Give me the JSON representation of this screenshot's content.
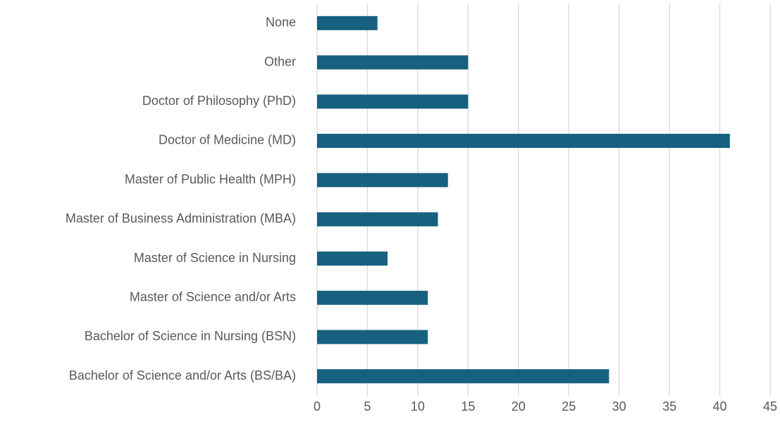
{
  "chart_data": {
    "type": "hbar",
    "categories": [
      "None",
      "Other",
      "Doctor of Philosophy (PhD)",
      "Doctor of Medicine (MD)",
      "Master of Public Health (MPH)",
      "Master of Business Administration (MBA)",
      "Master of Science in Nursing",
      "Master of Science and/or Arts",
      "Bachelor of Science in Nursing (BSN)",
      "Bachelor of Science and/or Arts (BS/BA)"
    ],
    "values": [
      6,
      15,
      15,
      41,
      13,
      12,
      7,
      11,
      11,
      29
    ],
    "color": "#17607f",
    "xlim": [
      0,
      45
    ],
    "xticks": [
      0,
      5,
      10,
      15,
      20,
      25,
      30,
      35,
      40,
      45
    ],
    "grid": true
  }
}
